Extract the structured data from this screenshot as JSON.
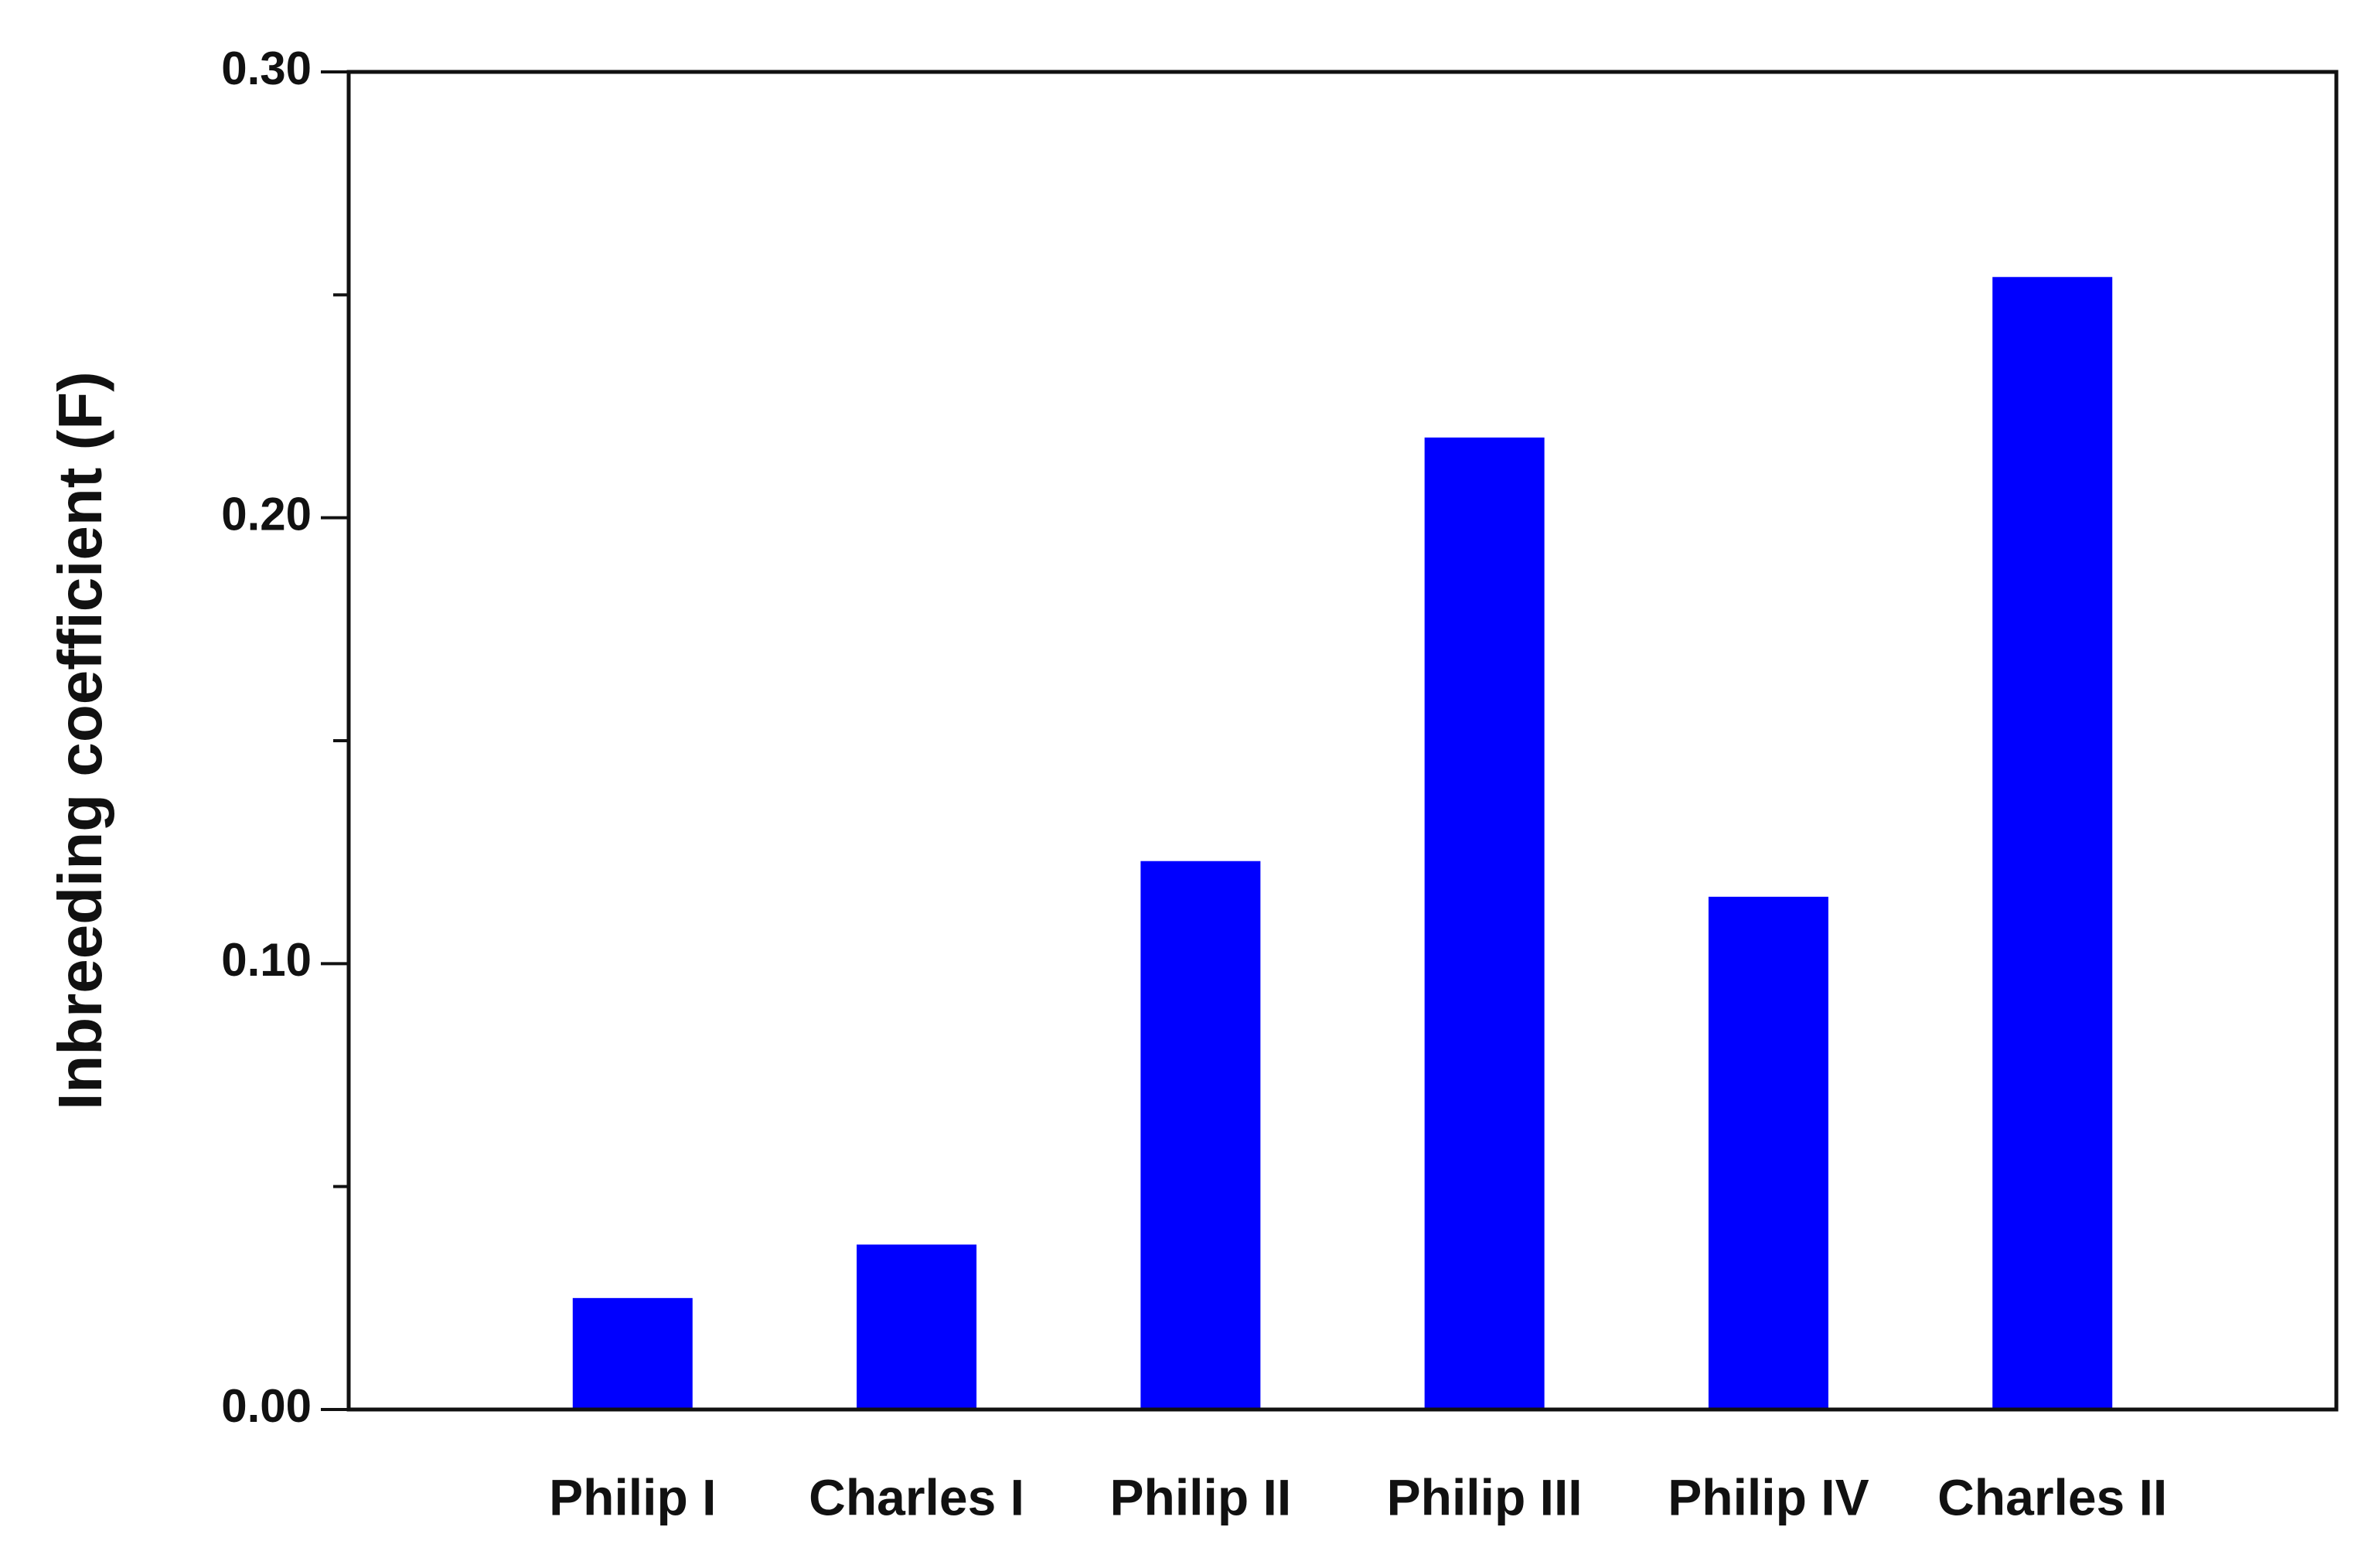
{
  "chart_data": {
    "type": "bar",
    "y_label": "Inbreeding coefficient (F)",
    "categories": [
      "Philip I",
      "Charles I",
      "Philip II",
      "Philip III",
      "Philip IV",
      "Charles II"
    ],
    "values": [
      0.025,
      0.037,
      0.123,
      0.218,
      0.115,
      0.254
    ],
    "color": "#0000ff",
    "ylim": [
      0,
      0.3
    ],
    "yticks": [
      {
        "value": 0,
        "label": "0.00"
      },
      {
        "value": 0.1,
        "label": "0.10"
      },
      {
        "value": 0.2,
        "label": "0.20"
      },
      {
        "value": 0.3,
        "label": "0.30"
      }
    ],
    "minor_yticks": [
      0.05,
      0.15,
      0.25
    ],
    "grid": false
  }
}
